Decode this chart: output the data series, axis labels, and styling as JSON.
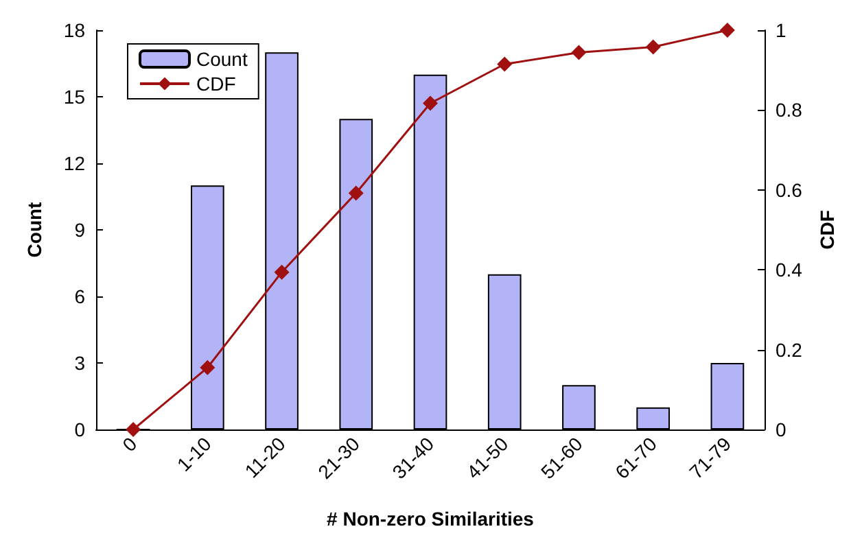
{
  "chart_data": {
    "type": "bar",
    "xlabel": "# Non-zero Similarities",
    "ylabel": "Count",
    "y2label": "CDF",
    "categories": [
      "0",
      "1-10",
      "11-20",
      "21-30",
      "31-40",
      "41-50",
      "51-60",
      "61-70",
      "71-79"
    ],
    "series": [
      {
        "name": "Count",
        "color": "#b3b3f7",
        "values": [
          0,
          11,
          17,
          14,
          16,
          7,
          2,
          1,
          3
        ]
      },
      {
        "name": "CDF",
        "type": "line",
        "axis": "y2",
        "color": "#a01010",
        "marker": "diamond",
        "values": [
          0,
          0.155,
          0.394,
          0.592,
          0.817,
          0.915,
          0.944,
          0.958,
          1
        ]
      }
    ],
    "ylim": [
      0,
      18
    ],
    "yticks": [
      0,
      3,
      6,
      9,
      12,
      15,
      18
    ],
    "y2lim": [
      0,
      1
    ],
    "y2ticks": [
      0,
      0.2,
      0.4,
      0.6,
      0.8,
      1
    ],
    "grid": false,
    "legend": "top left"
  }
}
